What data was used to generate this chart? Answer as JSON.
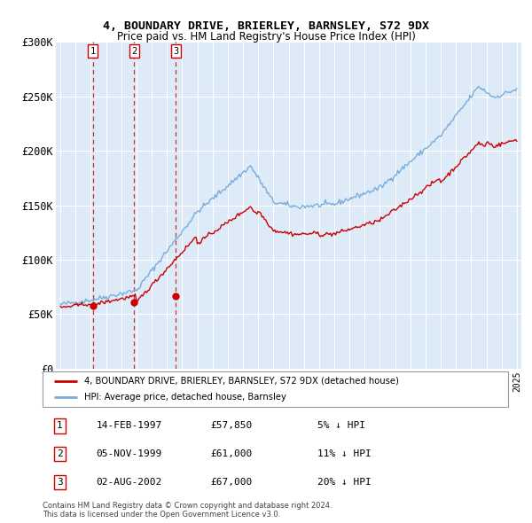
{
  "title": "4, BOUNDARY DRIVE, BRIERLEY, BARNSLEY, S72 9DX",
  "subtitle": "Price paid vs. HM Land Registry's House Price Index (HPI)",
  "legend_line1": "4, BOUNDARY DRIVE, BRIERLEY, BARNSLEY, S72 9DX (detached house)",
  "legend_line2": "HPI: Average price, detached house, Barnsley",
  "sale_dates": [
    "1997-02-14",
    "1999-11-05",
    "2002-08-02"
  ],
  "sale_prices": [
    57850,
    61000,
    67000
  ],
  "sale_labels": [
    "1",
    "2",
    "3"
  ],
  "table_rows": [
    [
      "1",
      "14-FEB-1997",
      "£57,850",
      "5% ↓ HPI"
    ],
    [
      "2",
      "05-NOV-1999",
      "£61,000",
      "11% ↓ HPI"
    ],
    [
      "3",
      "02-AUG-2002",
      "£67,000",
      "20% ↓ HPI"
    ]
  ],
  "footnote1": "Contains HM Land Registry data © Crown copyright and database right 2024.",
  "footnote2": "This data is licensed under the Open Government Licence v3.0.",
  "hpi_color": "#7aaddc",
  "sale_color": "#cc0000",
  "dashed_color": "#cc0000",
  "background_color": "#ddeaf7",
  "plot_bg": "#ddeaf7",
  "ylim": [
    0,
    300000
  ],
  "yticks": [
    0,
    50000,
    100000,
    150000,
    200000,
    250000,
    300000
  ],
  "xlim_start": 1994.7,
  "xlim_end": 2025.3
}
